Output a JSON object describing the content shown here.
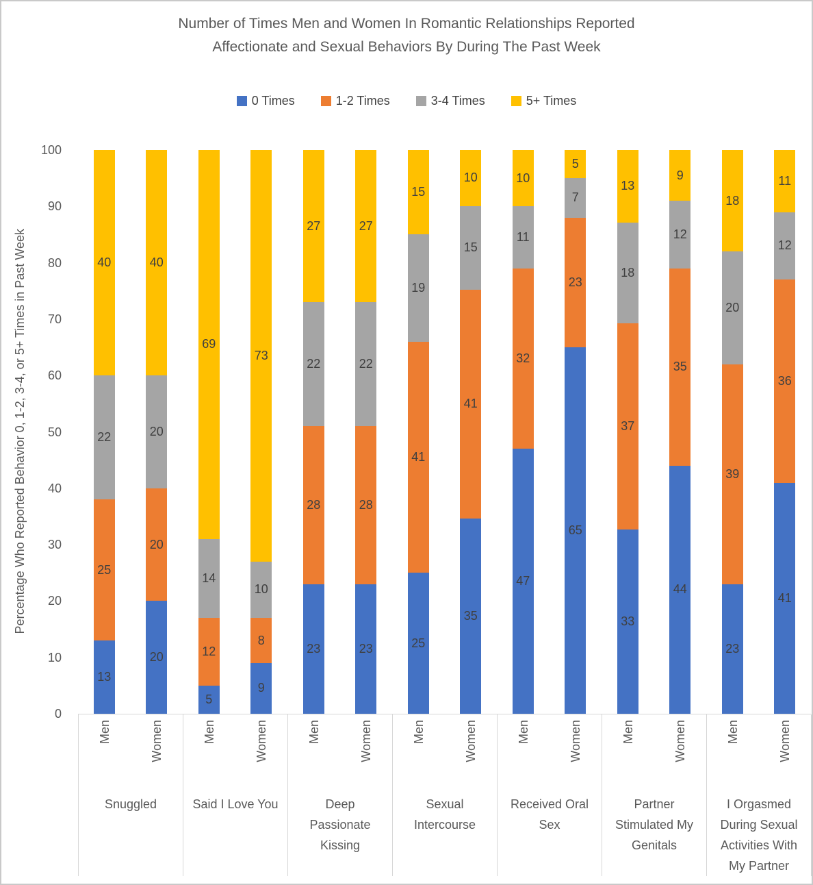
{
  "title": {
    "lines": [
      "Number of Times Men and Women In Romantic Relationships Reported",
      "Affectionate and Sexual Behaviors By During The Past Week"
    ]
  },
  "legend": {
    "position": "top",
    "items": [
      {
        "label": "0 Times",
        "color": "#4472C4"
      },
      {
        "label": "1-2 Times",
        "color": "#ED7D31"
      },
      {
        "label": "3-4 Times",
        "color": "#A5A5A5"
      },
      {
        "label": "5+ Times",
        "color": "#FFC000"
      }
    ]
  },
  "y_axis": {
    "title": "Percentage Who Reported Behavior 0, 1-2, 3-4, or 5+ Times in Past Week",
    "ticks": [
      0,
      10,
      20,
      30,
      40,
      50,
      60,
      70,
      80,
      90,
      100
    ],
    "max": 100
  },
  "chart_data": {
    "type": "bar",
    "stacked": true,
    "grid": false,
    "ylim": [
      0,
      100
    ],
    "series_names": [
      "0 Times",
      "1-2 Times",
      "3-4 Times",
      "5+ Times"
    ],
    "series_colors": [
      "#4472C4",
      "#ED7D31",
      "#A5A5A5",
      "#FFC000"
    ],
    "groups": [
      {
        "label": "Snuggled",
        "label_lines": [
          "Snuggled"
        ],
        "bars": [
          {
            "label": "Men",
            "values": [
              13,
              25,
              22,
              40
            ]
          },
          {
            "label": "Women",
            "values": [
              20,
              20,
              20,
              40
            ]
          }
        ]
      },
      {
        "label": "Said I Love You",
        "label_lines": [
          "Said I Love You"
        ],
        "bars": [
          {
            "label": "Men",
            "values": [
              5,
              12,
              14,
              69
            ]
          },
          {
            "label": "Women",
            "values": [
              9,
              8,
              10,
              73
            ]
          }
        ]
      },
      {
        "label": "Deep Passionate Kissing",
        "label_lines": [
          "Deep",
          "Passionate",
          "Kissing"
        ],
        "bars": [
          {
            "label": "Men",
            "values": [
              23,
              28,
              22,
              27
            ]
          },
          {
            "label": "Women",
            "values": [
              23,
              28,
              22,
              27
            ]
          }
        ]
      },
      {
        "label": "Sexual Intercourse",
        "label_lines": [
          "Sexual",
          "Intercourse"
        ],
        "bars": [
          {
            "label": "Men",
            "values": [
              25,
              41,
              19,
              15
            ]
          },
          {
            "label": "Women",
            "values": [
              35,
              41,
              15,
              10
            ]
          }
        ]
      },
      {
        "label": "Received Oral Sex",
        "label_lines": [
          "Received Oral",
          "Sex"
        ],
        "bars": [
          {
            "label": "Men",
            "values": [
              47,
              32,
              11,
              10
            ]
          },
          {
            "label": "Women",
            "values": [
              65,
              23,
              7,
              5
            ]
          }
        ]
      },
      {
        "label": "Partner Stimulated My Genitals",
        "label_lines": [
          "Partner",
          "Stimulated My",
          "Genitals"
        ],
        "bars": [
          {
            "label": "Men",
            "values": [
              33,
              37,
              18,
              13
            ]
          },
          {
            "label": "Women",
            "values": [
              44,
              35,
              12,
              9
            ]
          }
        ]
      },
      {
        "label": "I Orgasmed During Sexual Activities With My Partner",
        "label_lines": [
          "I Orgasmed",
          "During Sexual",
          "Activities With",
          "My Partner"
        ],
        "bars": [
          {
            "label": "Men",
            "values": [
              23,
              39,
              20,
              18
            ]
          },
          {
            "label": "Women",
            "values": [
              41,
              36,
              12,
              11
            ]
          }
        ]
      }
    ]
  }
}
